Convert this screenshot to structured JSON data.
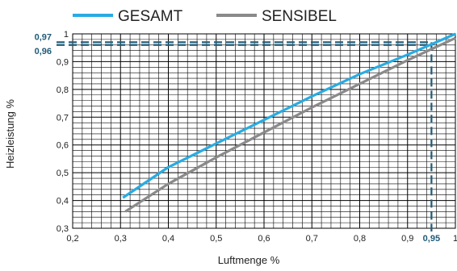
{
  "chart_data": {
    "type": "line",
    "xlabel": "Luftmenge %",
    "ylabel": "Heizleistung %",
    "xlim": [
      0.2,
      1.0
    ],
    "ylim": [
      0.3,
      1.0
    ],
    "x_ticks": [
      "0,2",
      "0,3",
      "0,4",
      "0,5",
      "0,6",
      "0,7",
      "0,8",
      "0,9",
      "1"
    ],
    "y_ticks": [
      "0,3",
      "0,4",
      "0,5",
      "0,6",
      "0,7",
      "0,8",
      "0,9",
      "1"
    ],
    "grid": true,
    "legend_position": "top",
    "series": [
      {
        "name": "GESAMT",
        "color": "#29abe2",
        "x": [
          0.305,
          0.4,
          0.5,
          0.6,
          0.7,
          0.8,
          0.9,
          1.0
        ],
        "y": [
          0.41,
          0.52,
          0.605,
          0.69,
          0.775,
          0.855,
          0.925,
          1.0
        ]
      },
      {
        "name": "SENSIBEL",
        "color": "#8a8a8a",
        "x": [
          0.31,
          0.4,
          0.5,
          0.6,
          0.7,
          0.8,
          0.9,
          1.0
        ],
        "y": [
          0.36,
          0.46,
          0.555,
          0.645,
          0.735,
          0.82,
          0.905,
          0.985
        ]
      }
    ],
    "reference": {
      "color": "#1f5b78",
      "x": 0.95,
      "x_label": "0,95",
      "y_values": [
        0.97,
        0.96
      ],
      "y_labels": [
        "0,97",
        "0,96"
      ]
    }
  }
}
